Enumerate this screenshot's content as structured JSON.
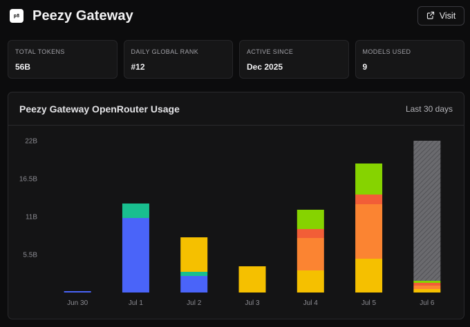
{
  "app": {
    "logo_text": "p8",
    "title": "Peezy Gateway",
    "visit_label": "Visit"
  },
  "stats": [
    {
      "label": "TOTAL TOKENS",
      "value": "56B"
    },
    {
      "label": "DAILY GLOBAL RANK",
      "value": "#12"
    },
    {
      "label": "ACTIVE SINCE",
      "value": "Dec 2025"
    },
    {
      "label": "MODELS USED",
      "value": "9"
    }
  ],
  "chart_card": {
    "title": "Peezy Gateway OpenRouter Usage",
    "range": "Last 30 days"
  },
  "colors": {
    "blue": "#4a64f9",
    "teal": "#19bf8f",
    "yellow": "#f5c000",
    "orange": "#fb8432",
    "red": "#f25e37",
    "lime": "#86d300",
    "hatch": "#6a6a6e"
  },
  "chart_data": {
    "type": "bar",
    "stacked": true,
    "categories": [
      "Jun 30",
      "Jul 1",
      "Jul 2",
      "Jul 3",
      "Jul 4",
      "Jul 5",
      "Jul 6"
    ],
    "ylim": [
      0,
      22
    ],
    "y_ticks": [
      "22B",
      "16.5B",
      "11B",
      "5.5B"
    ],
    "y_tick_values": [
      22,
      16.5,
      11,
      5.5
    ],
    "unit": "B",
    "series": [
      {
        "color": "#4a64f9",
        "values": [
          0.2,
          10.8,
          2.4,
          0,
          0,
          0,
          0
        ]
      },
      {
        "color": "#19bf8f",
        "values": [
          0,
          2.1,
          0.6,
          0,
          0,
          0,
          0
        ]
      },
      {
        "color": "#f5c000",
        "values": [
          0,
          0,
          5.0,
          3.8,
          3.2,
          4.9,
          0.5
        ]
      },
      {
        "color": "#fb8432",
        "values": [
          0,
          0,
          0,
          0,
          4.7,
          7.9,
          0.5
        ]
      },
      {
        "color": "#f25e37",
        "values": [
          0,
          0,
          0,
          0,
          1.3,
          1.4,
          0.4
        ]
      },
      {
        "color": "#86d300",
        "values": [
          0,
          0,
          0,
          0,
          2.8,
          4.5,
          0.3
        ]
      },
      {
        "color": "#6a6a6e",
        "hatched": true,
        "values": [
          0,
          0,
          0,
          0,
          0,
          0,
          20.3
        ]
      }
    ],
    "grid": false,
    "legend": "none"
  }
}
